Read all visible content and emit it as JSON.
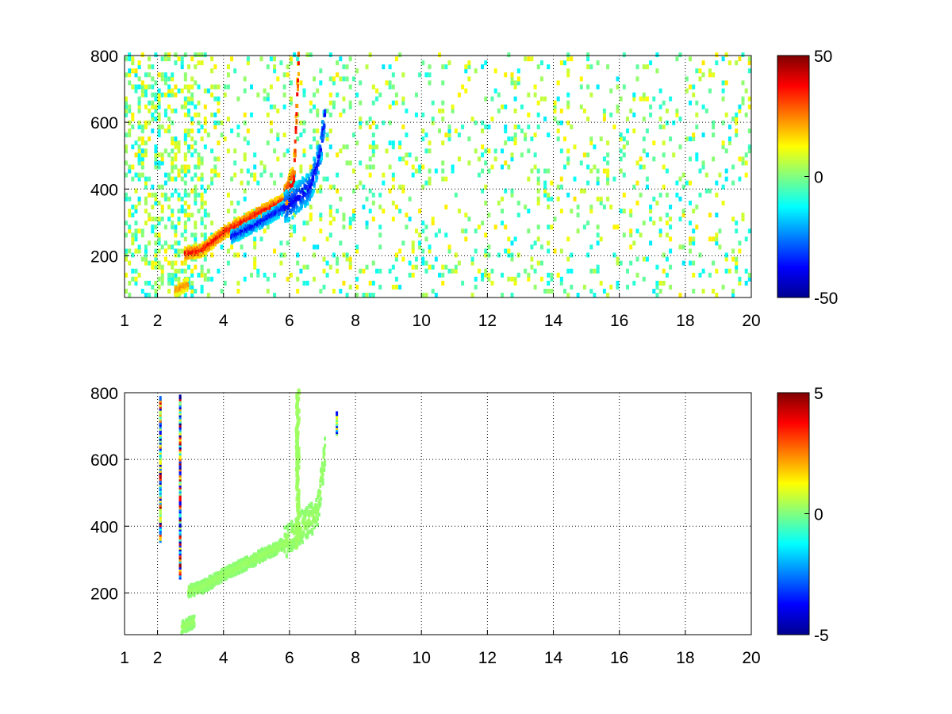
{
  "chart_data": [
    {
      "type": "heatmap",
      "title": "",
      "xlabel": "",
      "ylabel": "",
      "xlim": [
        1,
        20
      ],
      "ylim": [
        75,
        800
      ],
      "x_ticks": [
        1,
        2,
        4,
        6,
        8,
        10,
        12,
        14,
        16,
        18,
        20
      ],
      "y_ticks": [
        200,
        400,
        600,
        800
      ],
      "grid": true,
      "colormap": "jet",
      "colorbar": {
        "min": -50,
        "max": 50,
        "ticks": [
          50,
          0,
          -50
        ]
      },
      "features": [
        {
          "label": "positive ridge",
          "points": [
            [
              2.8,
              200
            ],
            [
              3.3,
              210
            ],
            [
              4,
              265
            ],
            [
              5,
              320
            ],
            [
              5.8,
              360
            ],
            [
              6.1,
              420
            ],
            [
              6.15,
              550
            ],
            [
              6.25,
              800
            ]
          ],
          "value": 40
        },
        {
          "label": "negative ridge",
          "points": [
            [
              4.2,
              250
            ],
            [
              5,
              290
            ],
            [
              6,
              350
            ],
            [
              6.6,
              400
            ],
            [
              6.9,
              500
            ],
            [
              7.05,
              620
            ]
          ],
          "value": -40
        },
        {
          "label": "positive blob",
          "points": [
            [
              2.5,
              90
            ],
            [
              2.9,
              110
            ]
          ],
          "value": 25
        }
      ],
      "background_noise": {
        "x_range": [
          1,
          20
        ],
        "y_range": [
          75,
          800
        ],
        "value_range": [
          -15,
          15
        ],
        "density": "sparse"
      }
    },
    {
      "type": "heatmap",
      "title": "",
      "xlabel": "",
      "ylabel": "",
      "xlim": [
        1,
        20
      ],
      "ylim": [
        75,
        800
      ],
      "x_ticks": [
        1,
        2,
        4,
        6,
        8,
        10,
        12,
        14,
        16,
        18,
        20
      ],
      "y_ticks": [
        200,
        400,
        600,
        800
      ],
      "grid": true,
      "colormap": "jet",
      "colorbar": {
        "min": -5,
        "max": 5,
        "ticks": [
          5,
          0,
          -5
        ]
      },
      "features": [
        {
          "label": "main band",
          "points": [
            [
              2.9,
              200
            ],
            [
              3.3,
              210
            ],
            [
              4,
              250
            ],
            [
              5,
              300
            ],
            [
              5.8,
              340
            ],
            [
              6.2,
              380
            ],
            [
              6.8,
              430
            ],
            [
              7.05,
              620
            ]
          ],
          "value": 0.3
        },
        {
          "label": "vertical streak",
          "points": [
            [
              6.2,
              330
            ],
            [
              6.22,
              800
            ]
          ],
          "value": 0.3
        },
        {
          "label": "low blob",
          "points": [
            [
              2.7,
              90
            ],
            [
              3.1,
              110
            ]
          ],
          "value": 0.3
        }
      ],
      "spikes": [
        {
          "x": 2.05,
          "y_range": [
            350,
            780
          ],
          "value_range": [
            -5,
            5
          ]
        },
        {
          "x": 2.65,
          "y_range": [
            240,
            780
          ],
          "value_range": [
            -5,
            5
          ]
        },
        {
          "x": 7.4,
          "y_range": [
            670,
            730
          ],
          "value_range": [
            -4,
            3
          ]
        }
      ]
    }
  ]
}
